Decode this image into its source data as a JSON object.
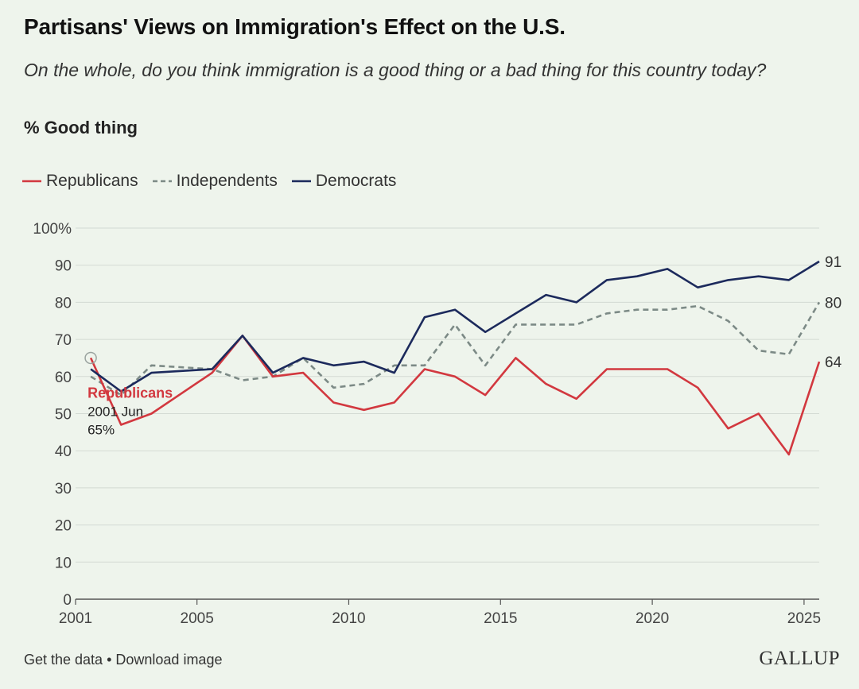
{
  "header": {
    "title": "Partisans' Views on Immigration's Effect on the U.S.",
    "subtitle": "On the whole, do you think immigration is a good thing or a bad thing for this country today?",
    "measure": "% Good thing"
  },
  "legend": [
    {
      "name": "Republicans",
      "color": "#d2383f",
      "dash": "solid"
    },
    {
      "name": "Independents",
      "color": "#7c8a86",
      "dash": "dashed"
    },
    {
      "name": "Democrats",
      "color": "#1c2a5c",
      "dash": "solid"
    }
  ],
  "chart_data": {
    "type": "line",
    "title": "Partisans' Views on Immigration's Effect on the U.S.",
    "ylabel": "",
    "xlabel": "",
    "xlim": [
      2001,
      2025.5
    ],
    "ylim": [
      0,
      100
    ],
    "x_ticks": [
      "2001",
      "2005",
      "2010",
      "2015",
      "2020",
      "2025"
    ],
    "y_ticks": [
      "100%",
      "90",
      "80",
      "70",
      "60",
      "50",
      "40",
      "30",
      "20",
      "10",
      "0"
    ],
    "grid": true,
    "legend_position": "top-left",
    "series": [
      {
        "name": "Republicans",
        "color": "#d2383f",
        "x": [
          2001.5,
          2002.5,
          2003.5,
          2005.5,
          2006.5,
          2007.5,
          2008.5,
          2009.5,
          2010.5,
          2011.5,
          2012.5,
          2013.5,
          2014.5,
          2015.5,
          2016.5,
          2017.5,
          2018.5,
          2019.5,
          2020.5,
          2021.5,
          2022.5,
          2023.5,
          2024.5,
          2025.5
        ],
        "values": [
          65,
          47,
          50,
          61,
          71,
          60,
          61,
          53,
          51,
          53,
          62,
          60,
          55,
          65,
          58,
          54,
          62,
          62,
          62,
          57,
          46,
          50,
          39,
          64
        ]
      },
      {
        "name": "Independents",
        "color": "#7c8a86",
        "x": [
          2001.5,
          2002.5,
          2003.5,
          2005.5,
          2006.5,
          2007.5,
          2008.5,
          2009.5,
          2010.5,
          2011.5,
          2012.5,
          2013.5,
          2014.5,
          2015.5,
          2016.5,
          2017.5,
          2018.5,
          2019.5,
          2020.5,
          2021.5,
          2022.5,
          2023.5,
          2024.5,
          2025.5
        ],
        "values": [
          60,
          55,
          63,
          62,
          59,
          60,
          65,
          57,
          58,
          63,
          63,
          74,
          63,
          74,
          74,
          74,
          77,
          78,
          78,
          79,
          75,
          67,
          66,
          80
        ]
      },
      {
        "name": "Democrats",
        "color": "#1c2a5c",
        "x": [
          2001.5,
          2002.5,
          2003.5,
          2005.5,
          2006.5,
          2007.5,
          2008.5,
          2009.5,
          2010.5,
          2011.5,
          2012.5,
          2013.5,
          2014.5,
          2015.5,
          2016.5,
          2017.5,
          2018.5,
          2019.5,
          2020.5,
          2021.5,
          2022.5,
          2023.5,
          2024.5,
          2025.5
        ],
        "values": [
          62,
          56,
          61,
          62,
          71,
          61,
          65,
          63,
          64,
          61,
          76,
          78,
          72,
          77,
          82,
          80,
          86,
          87,
          89,
          84,
          86,
          87,
          86,
          91
        ]
      }
    ],
    "end_labels": [
      {
        "series": "Democrats",
        "text": "91"
      },
      {
        "series": "Independents",
        "text": "80"
      },
      {
        "series": "Republicans",
        "text": "64"
      }
    ],
    "tooltip": {
      "series": "Republicans",
      "point_index": 0,
      "name": "Republicans",
      "date": "2001 Jun",
      "value": "65%"
    }
  },
  "footer": {
    "get_data": "Get the data",
    "separator": " • ",
    "download": "Download image",
    "brand": "GALLUP"
  }
}
